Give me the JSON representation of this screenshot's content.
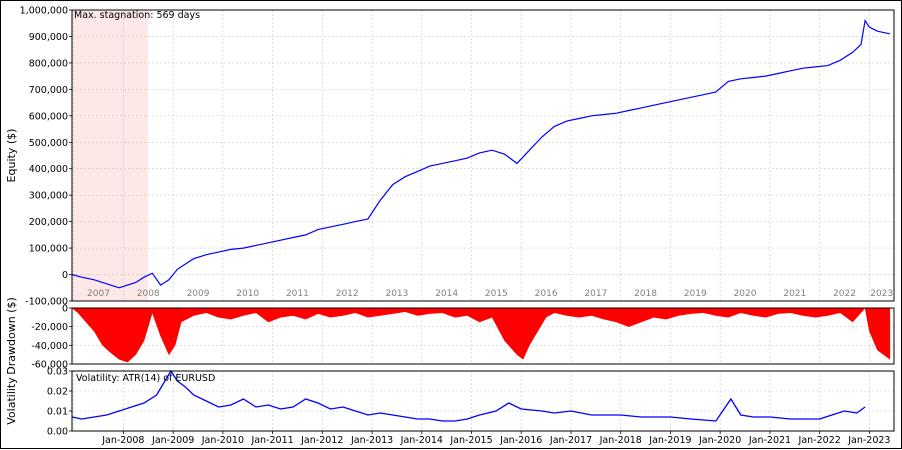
{
  "chart_data": [
    {
      "type": "line",
      "id": "equity",
      "ylabel": "Equity ($)",
      "ylim": [
        -100000,
        1000000
      ],
      "yticks": [
        "1,000,000",
        "900,000",
        "800,000",
        "700,000",
        "600,000",
        "500,000",
        "400,000",
        "300,000",
        "200,000",
        "100,000",
        "0",
        "-100,000"
      ],
      "year_labels": [
        "2007",
        "2008",
        "2009",
        "2010",
        "2011",
        "2012",
        "2013",
        "2014",
        "2015",
        "2016",
        "2017",
        "2018",
        "2019",
        "2020",
        "2021",
        "2022",
        "2023"
      ],
      "stagnation_label": "Max. stagnation: 569 days",
      "stagnation_range": [
        "2006-12-20",
        "2008-07-01"
      ],
      "series": [
        {
          "color": "#0000ff",
          "x": [
            "2006-12-20",
            "2007-03-01",
            "2007-06-01",
            "2007-09-01",
            "2007-12-01",
            "2008-02-01",
            "2008-04-01",
            "2008-06-01",
            "2008-08-01",
            "2008-10-01",
            "2008-12-01",
            "2009-02-01",
            "2009-04-01",
            "2009-06-01",
            "2009-09-01",
            "2009-12-01",
            "2010-03-01",
            "2010-06-01",
            "2010-09-01",
            "2010-12-01",
            "2011-03-01",
            "2011-06-01",
            "2011-09-01",
            "2011-12-01",
            "2012-03-01",
            "2012-06-01",
            "2012-09-01",
            "2012-12-01",
            "2013-03-01",
            "2013-06-01",
            "2013-09-01",
            "2013-12-01",
            "2014-03-01",
            "2014-06-01",
            "2014-09-01",
            "2014-12-01",
            "2015-03-01",
            "2015-06-01",
            "2015-09-01",
            "2015-12-01",
            "2016-03-01",
            "2016-06-01",
            "2016-09-01",
            "2016-12-01",
            "2017-03-01",
            "2017-06-01",
            "2017-09-01",
            "2017-12-01",
            "2018-03-01",
            "2018-06-01",
            "2018-09-01",
            "2018-12-01",
            "2019-03-01",
            "2019-06-01",
            "2019-09-01",
            "2019-12-01",
            "2020-03-01",
            "2020-06-01",
            "2020-09-01",
            "2020-12-01",
            "2021-03-01",
            "2021-06-01",
            "2021-09-01",
            "2021-12-01",
            "2022-03-01",
            "2022-06-01",
            "2022-09-01",
            "2022-11-01",
            "2022-12-01",
            "2023-01-01",
            "2023-03-01",
            "2023-06-01"
          ],
          "values": [
            0,
            -10000,
            -20000,
            -35000,
            -50000,
            -40000,
            -30000,
            -10000,
            5000,
            -40000,
            -20000,
            20000,
            40000,
            60000,
            75000,
            85000,
            95000,
            100000,
            110000,
            120000,
            130000,
            140000,
            150000,
            170000,
            180000,
            190000,
            200000,
            210000,
            280000,
            340000,
            370000,
            390000,
            410000,
            420000,
            430000,
            440000,
            460000,
            470000,
            455000,
            420000,
            470000,
            520000,
            560000,
            580000,
            590000,
            600000,
            605000,
            610000,
            620000,
            630000,
            640000,
            650000,
            660000,
            670000,
            680000,
            690000,
            730000,
            740000,
            745000,
            750000,
            760000,
            770000,
            780000,
            785000,
            790000,
            810000,
            840000,
            870000,
            960000,
            935000,
            920000,
            910000
          ]
        }
      ]
    },
    {
      "type": "area",
      "id": "drawdown",
      "ylabel": "Drawdown ($)",
      "ylim": [
        -60000,
        0
      ],
      "yticks": [
        "0",
        "-20,000",
        "-40,000",
        "-60,000"
      ],
      "series": [
        {
          "color": "#ff0000",
          "x": [
            "2006-12-20",
            "2007-02-01",
            "2007-04-01",
            "2007-06-01",
            "2007-08-01",
            "2007-10-01",
            "2007-12-01",
            "2008-02-01",
            "2008-04-01",
            "2008-06-01",
            "2008-08-01",
            "2008-10-01",
            "2008-12-01",
            "2009-01-15",
            "2009-03-01",
            "2009-06-01",
            "2009-09-01",
            "2009-12-01",
            "2010-03-01",
            "2010-06-01",
            "2010-09-01",
            "2010-12-01",
            "2011-03-01",
            "2011-06-01",
            "2011-09-01",
            "2011-12-01",
            "2012-03-01",
            "2012-06-01",
            "2012-09-01",
            "2012-12-01",
            "2013-03-01",
            "2013-06-01",
            "2013-09-01",
            "2013-12-01",
            "2014-03-01",
            "2014-06-01",
            "2014-09-01",
            "2014-12-01",
            "2015-03-01",
            "2015-06-01",
            "2015-09-01",
            "2015-12-01",
            "2016-01-15",
            "2016-03-01",
            "2016-05-01",
            "2016-07-01",
            "2016-09-01",
            "2016-12-01",
            "2017-03-01",
            "2017-06-01",
            "2017-09-01",
            "2017-12-01",
            "2018-03-01",
            "2018-06-01",
            "2018-09-01",
            "2018-12-01",
            "2019-03-01",
            "2019-06-01",
            "2019-09-01",
            "2019-12-01",
            "2020-03-01",
            "2020-06-01",
            "2020-09-01",
            "2020-12-01",
            "2021-03-01",
            "2021-06-01",
            "2021-09-01",
            "2021-12-01",
            "2022-03-01",
            "2022-06-01",
            "2022-09-01",
            "2022-11-01",
            "2022-12-01",
            "2023-01-01",
            "2023-03-01",
            "2023-06-01"
          ],
          "values": [
            0,
            -5000,
            -15000,
            -25000,
            -40000,
            -48000,
            -55000,
            -58000,
            -50000,
            -35000,
            -5000,
            -30000,
            -50000,
            -40000,
            -15000,
            -8000,
            -5000,
            -10000,
            -12000,
            -8000,
            -5000,
            -15000,
            -10000,
            -8000,
            -12000,
            -6000,
            -10000,
            -8000,
            -5000,
            -10000,
            -8000,
            -6000,
            -4000,
            -8000,
            -6000,
            -5000,
            -10000,
            -8000,
            -15000,
            -10000,
            -35000,
            -50000,
            -55000,
            -40000,
            -25000,
            -10000,
            -5000,
            -8000,
            -10000,
            -8000,
            -12000,
            -15000,
            -20000,
            -15000,
            -10000,
            -12000,
            -8000,
            -6000,
            -5000,
            -8000,
            -10000,
            -5000,
            -8000,
            -10000,
            -6000,
            -5000,
            -8000,
            -10000,
            -8000,
            -5000,
            -15000,
            -5000,
            0,
            -25000,
            -45000,
            -55000
          ]
        }
      ]
    },
    {
      "type": "line",
      "id": "volatility",
      "ylabel": "Volatility",
      "title": "Volatility: ATR(14) of EURUSD",
      "ylim": [
        0,
        0.03
      ],
      "yticks": [
        "0.03",
        "0.02",
        "0.01",
        "0.00"
      ],
      "xticks": [
        "Jan-2008",
        "Jan-2009",
        "Jan-2010",
        "Jan-2011",
        "Jan-2012",
        "Jan-2013",
        "Jan-2014",
        "Jan-2015",
        "Jan-2016",
        "Jan-2017",
        "Jan-2018",
        "Jan-2019",
        "Jan-2020",
        "Jan-2021",
        "Jan-2022",
        "Jan-2023"
      ],
      "series": [
        {
          "color": "#0000ff",
          "x": [
            "2006-12-20",
            "2007-03-01",
            "2007-06-01",
            "2007-09-01",
            "2007-12-01",
            "2008-03-01",
            "2008-06-01",
            "2008-09-01",
            "2008-11-01",
            "2008-12-15",
            "2009-02-01",
            "2009-04-01",
            "2009-06-01",
            "2009-09-01",
            "2009-12-01",
            "2010-03-01",
            "2010-06-01",
            "2010-09-01",
            "2010-12-01",
            "2011-03-01",
            "2011-06-01",
            "2011-09-01",
            "2011-12-01",
            "2012-03-01",
            "2012-06-01",
            "2012-09-01",
            "2012-12-01",
            "2013-03-01",
            "2013-06-01",
            "2013-09-01",
            "2013-12-01",
            "2014-03-01",
            "2014-06-01",
            "2014-09-01",
            "2014-12-01",
            "2015-03-01",
            "2015-05-01",
            "2015-07-01",
            "2015-10-01",
            "2016-01-01",
            "2016-06-01",
            "2016-09-01",
            "2017-01-01",
            "2017-06-01",
            "2018-01-01",
            "2018-06-01",
            "2019-01-01",
            "2019-06-01",
            "2019-12-01",
            "2020-03-20",
            "2020-06-01",
            "2020-09-01",
            "2021-01-01",
            "2021-06-01",
            "2022-01-01",
            "2022-04-01",
            "2022-07-01",
            "2022-10-01",
            "2022-12-01"
          ],
          "values": [
            0.007,
            0.006,
            0.007,
            0.008,
            0.01,
            0.012,
            0.014,
            0.018,
            0.025,
            0.03,
            0.025,
            0.022,
            0.018,
            0.015,
            0.012,
            0.013,
            0.016,
            0.012,
            0.013,
            0.011,
            0.012,
            0.016,
            0.014,
            0.011,
            0.012,
            0.01,
            0.008,
            0.009,
            0.008,
            0.007,
            0.006,
            0.006,
            0.005,
            0.005,
            0.006,
            0.008,
            0.009,
            0.01,
            0.014,
            0.011,
            0.01,
            0.009,
            0.01,
            0.008,
            0.008,
            0.007,
            0.007,
            0.006,
            0.005,
            0.016,
            0.008,
            0.007,
            0.007,
            0.006,
            0.006,
            0.008,
            0.01,
            0.009,
            0.012
          ]
        }
      ]
    }
  ]
}
